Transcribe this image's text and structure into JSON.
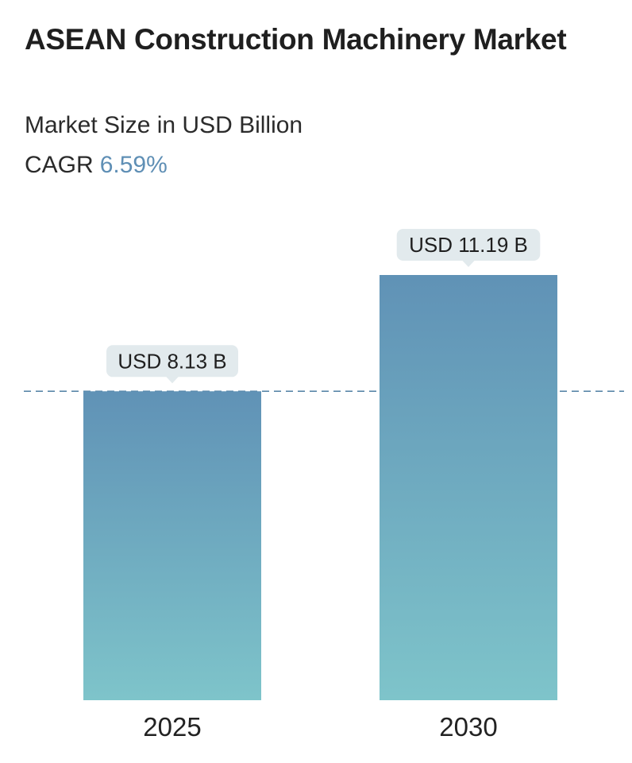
{
  "header": {
    "title": "ASEAN Construction Machinery Market",
    "subtitle": "Market Size in USD Billion",
    "cagr_label": "CAGR",
    "cagr_value": "6.59%"
  },
  "colors": {
    "bar_top": "#6092b6",
    "bar_bottom": "#7ec4ca",
    "label_bg": "#e2eaed",
    "reference_line": "#4f7fa3",
    "cagr_accent": "#5f8fb5"
  },
  "chart_data": {
    "type": "bar",
    "categories": [
      "2025",
      "2030"
    ],
    "values": [
      8.13,
      11.19
    ],
    "data_labels": [
      "USD 8.13 B",
      "USD 11.19 B"
    ],
    "unit": "USD Billion",
    "reference_line_value": 8.13,
    "reference_line_style": "dashed",
    "grid": false,
    "legend": "none"
  }
}
